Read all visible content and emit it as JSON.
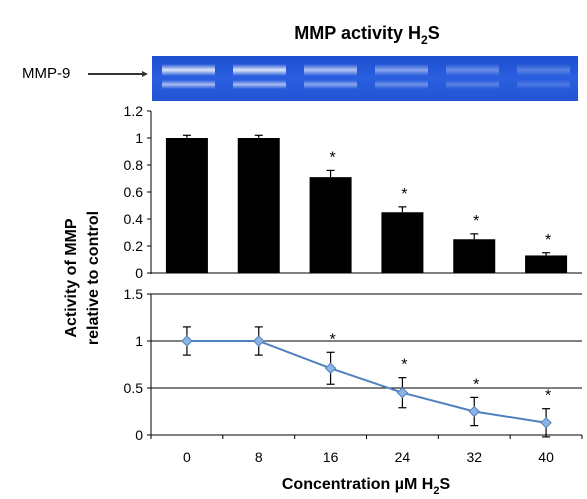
{
  "figure": {
    "title": "MMP activity H",
    "title_sub": "2",
    "title_suffix": "S",
    "blot_label": "MMP-9",
    "ylabel_line1": "Activity of MMP",
    "ylabel_line2": "relative to control",
    "xlabel": "Concentration µM H",
    "xlabel_sub": "2",
    "xlabel_suffix": "S",
    "significance_mark": "*"
  },
  "chart_data": [
    {
      "type": "bar",
      "categories": [
        "0",
        "8",
        "16",
        "24",
        "32",
        "40"
      ],
      "values": [
        1.0,
        1.0,
        0.71,
        0.45,
        0.25,
        0.13
      ],
      "errors": [
        0.02,
        0.02,
        0.05,
        0.04,
        0.04,
        0.02
      ],
      "significant": [
        false,
        false,
        true,
        true,
        true,
        true
      ],
      "ylim": [
        0,
        1.2
      ],
      "yticks": [
        "0",
        "0.2",
        "0.4",
        "0.6",
        "0.8",
        "1",
        "1.2"
      ],
      "bar_color": "#000000",
      "grid": false
    },
    {
      "type": "line",
      "x": [
        "0",
        "8",
        "16",
        "24",
        "32",
        "40"
      ],
      "values": [
        1.0,
        1.0,
        0.71,
        0.45,
        0.25,
        0.13
      ],
      "errors": [
        0.15,
        0.15,
        0.17,
        0.16,
        0.15,
        0.15
      ],
      "significant": [
        false,
        false,
        true,
        true,
        true,
        true
      ],
      "ylim": [
        0,
        1.5
      ],
      "yticks": [
        "0",
        "0.5",
        "1",
        "1.5"
      ],
      "line_color": "#4f81bd",
      "marker_color": "#8eb4e3",
      "grid": true
    }
  ]
}
